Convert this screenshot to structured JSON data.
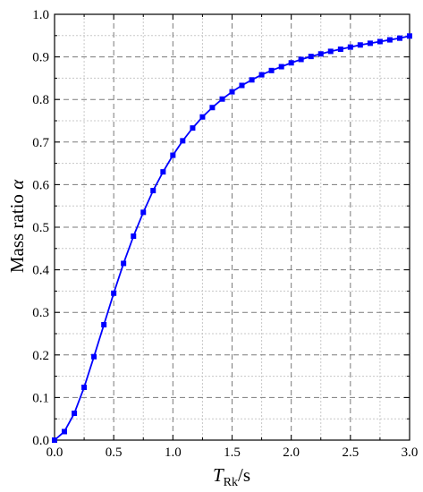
{
  "chart_data": {
    "type": "line",
    "xlabel": {
      "main": "T",
      "sub": "Rk",
      "suffix": "/s"
    },
    "ylabel": {
      "main": "Mass ratio ",
      "symbol": "α"
    },
    "xlim": [
      0,
      3
    ],
    "ylim": [
      0,
      1
    ],
    "x_ticks": [
      "0.0",
      "0.5",
      "1.0",
      "1.5",
      "2.0",
      "2.5",
      "3.0"
    ],
    "y_ticks": [
      "0.0",
      "0.1",
      "0.2",
      "0.3",
      "0.4",
      "0.5",
      "0.6",
      "0.7",
      "0.8",
      "0.9",
      "1.0"
    ],
    "grid": {
      "major": true,
      "minor": true
    },
    "series": [
      {
        "color": "#0000ff",
        "marker": "square",
        "x": [
          0.0,
          0.083,
          0.167,
          0.25,
          0.333,
          0.417,
          0.5,
          0.583,
          0.667,
          0.75,
          0.833,
          0.917,
          1.0,
          1.083,
          1.167,
          1.25,
          1.333,
          1.417,
          1.5,
          1.583,
          1.667,
          1.75,
          1.833,
          1.917,
          2.0,
          2.083,
          2.167,
          2.25,
          2.333,
          2.417,
          2.5,
          2.583,
          2.667,
          2.75,
          2.833,
          2.917,
          3.0
        ],
        "y": [
          0.0,
          0.02,
          0.063,
          0.124,
          0.196,
          0.271,
          0.345,
          0.415,
          0.479,
          0.535,
          0.586,
          0.63,
          0.669,
          0.703,
          0.733,
          0.759,
          0.781,
          0.801,
          0.818,
          0.833,
          0.846,
          0.858,
          0.868,
          0.877,
          0.886,
          0.894,
          0.901,
          0.907,
          0.913,
          0.918,
          0.923,
          0.928,
          0.932,
          0.936,
          0.94,
          0.944,
          0.949
        ]
      }
    ]
  }
}
